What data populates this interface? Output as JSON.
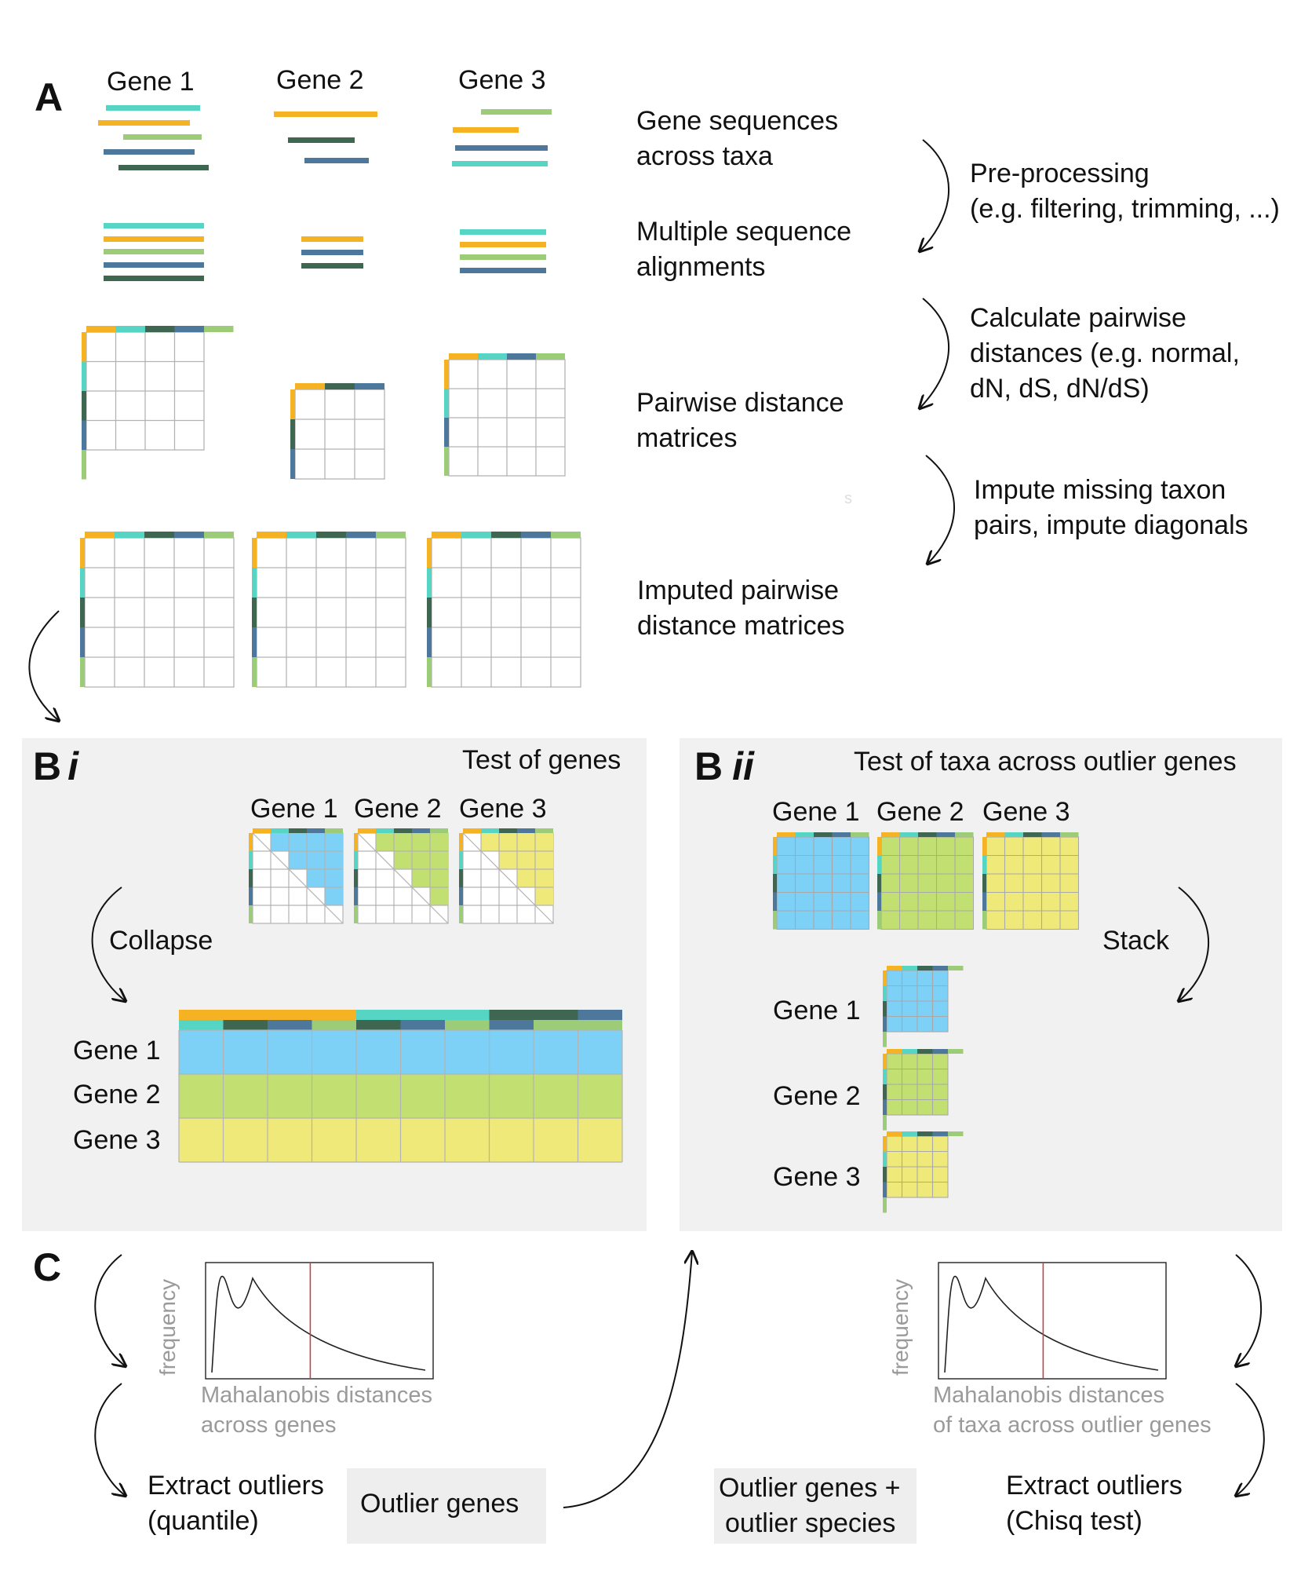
{
  "colors": {
    "orange": "#f5b324",
    "teal": "#56d4c4",
    "dark_green": "#3f6651",
    "steel_blue": "#4d789b",
    "light_green": "#9ccc78",
    "blue_fill": "#7dd0f6",
    "green_fill": "#c2e072",
    "yellow_fill": "#efe97a",
    "panel_bg": "#f1f1f1",
    "threshold_line": "#c0454a",
    "muted_text": "#9a9a9a"
  },
  "panel_a": {
    "letter": "A",
    "gene_headers": [
      "Gene 1",
      "Gene 2",
      "Gene 3"
    ],
    "steps": [
      {
        "label_line1": "Gene sequences",
        "label_line2": "across taxa"
      },
      {
        "label_line1": "Multiple sequence",
        "label_line2": "alignments"
      },
      {
        "label_line1": "Pairwise distance",
        "label_line2": "matrices"
      },
      {
        "label_line1": "Imputed pairwise",
        "label_line2": "distance matrices"
      }
    ],
    "transitions": [
      {
        "line1": "Pre-processing",
        "line2": "(e.g. filtering, trimming, ...)",
        "line3": ""
      },
      {
        "line1": "Calculate pairwise",
        "line2": "distances (e.g. normal,",
        "line3": "dN, dS, dN/dS)"
      },
      {
        "line1": "Impute missing taxon",
        "line2": "pairs, impute diagonals",
        "line3": ""
      }
    ],
    "stray_mark": "s"
  },
  "panel_bi": {
    "letter": "B",
    "letter_suffix": "i",
    "title": "Test of genes",
    "gene_headers": [
      "Gene 1",
      "Gene 2",
      "Gene 3"
    ],
    "action": "Collapse",
    "row_labels": [
      "Gene 1",
      "Gene 2",
      "Gene 3"
    ]
  },
  "panel_bii": {
    "letter": "B",
    "letter_suffix": "ii",
    "title": "Test of taxa across outlier genes",
    "gene_headers": [
      "Gene 1",
      "Gene 2",
      "Gene 3"
    ],
    "action": "Stack",
    "row_labels": [
      "Gene 1",
      "Gene 2",
      "Gene 3"
    ]
  },
  "panel_c": {
    "letter": "C",
    "left_plot": {
      "ylabel": "frequency",
      "xlabel_line1": "Mahalanobis distances",
      "xlabel_line2": "across genes"
    },
    "right_plot": {
      "ylabel": "frequency",
      "xlabel_line1": "Mahalanobis distances",
      "xlabel_line2": "of taxa across outlier genes"
    },
    "left_extract": {
      "line1": "Extract outliers",
      "line2": "(quantile)"
    },
    "left_output": "Outlier genes",
    "right_output": {
      "line1": "Outlier genes +",
      "line2": "outlier species"
    },
    "right_extract": {
      "line1": "Extract outliers",
      "line2": "(Chisq test)"
    }
  }
}
